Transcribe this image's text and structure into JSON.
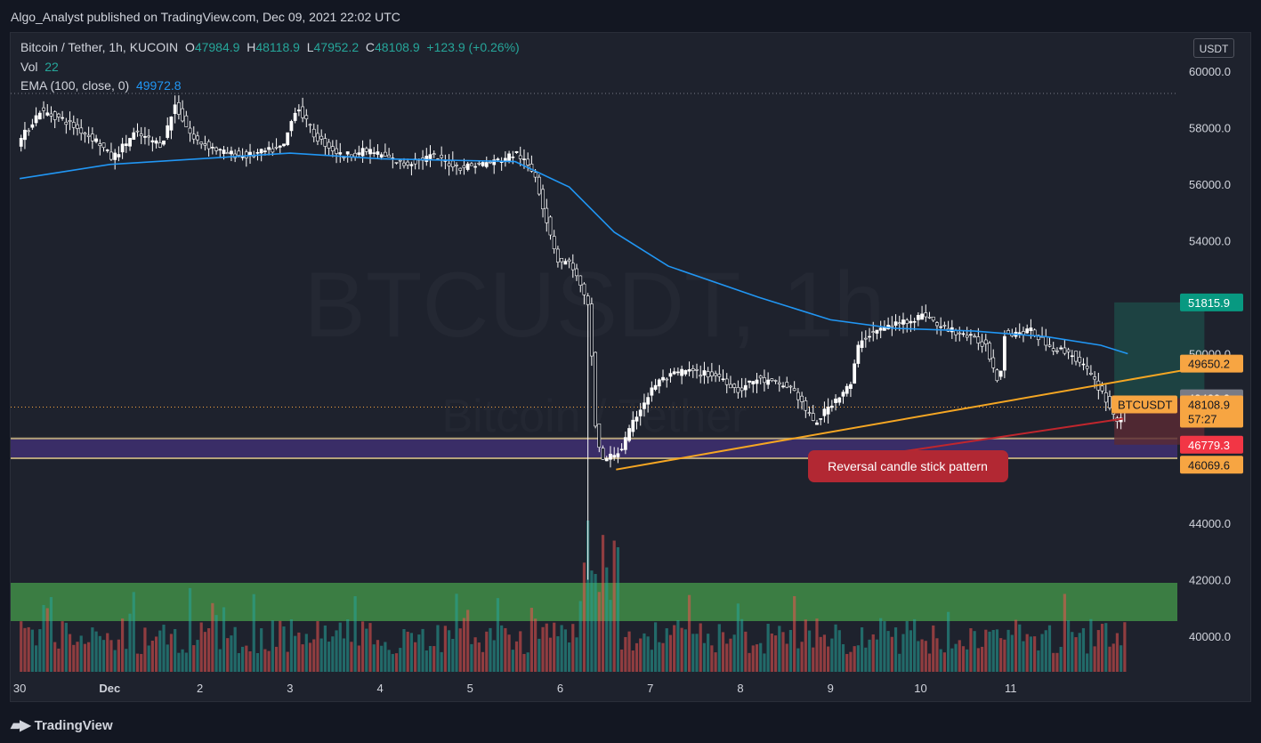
{
  "header": {
    "publisher": "Algo_Analyst published on TradingView.com, Dec 09, 2021 22:02 UTC"
  },
  "legend": {
    "symbol": "Bitcoin / Tether, 1h, KUCOIN",
    "o_label": "O",
    "o_value": "47984.9",
    "h_label": "H",
    "h_value": "48118.9",
    "l_label": "L",
    "l_value": "47952.2",
    "c_label": "C",
    "c_value": "48108.9",
    "change": "+123.9 (+0.26%)",
    "vol_label": "Vol",
    "vol_value": "22",
    "ema_label": "EMA (100, close, 0)",
    "ema_value": "49972.8"
  },
  "currency_button": "USDT",
  "watermark": {
    "main": "BTCUSDT, 1h",
    "sub": "Bitcoin / Tether"
  },
  "footer": {
    "brand": "TradingView"
  },
  "colors": {
    "background": "#1e222d",
    "up": "#ffffff",
    "down": "#ffffff",
    "ema": "#2196f3",
    "trendline": "#f5a623",
    "support_zone": "#3d2f6e",
    "volume_zone": "#4caf50",
    "vol_up": "#26a69a",
    "vol_down": "#ef5350",
    "target": "#1e4e4a",
    "stop": "#5b2a33"
  },
  "chart_data": {
    "type": "candlestick",
    "symbol": "BTCUSDT",
    "timeframe": "1h",
    "ylim": [
      38700,
      61200
    ],
    "y_ticks": [
      40000,
      42000,
      44000,
      46000,
      48000,
      50000,
      52000,
      54000,
      56000,
      58000,
      60000
    ],
    "x_range": [
      "Nov 29 12:00",
      "Dec 11 20:00"
    ],
    "x_ticks": [
      {
        "label": "30",
        "day": 1
      },
      {
        "label": "Dec",
        "day": 2
      },
      {
        "label": "2",
        "day": 3
      },
      {
        "label": "3",
        "day": 4
      },
      {
        "label": "4",
        "day": 5
      },
      {
        "label": "5",
        "day": 6
      },
      {
        "label": "6",
        "day": 7
      },
      {
        "label": "7",
        "day": 8
      },
      {
        "label": "8",
        "day": 9
      },
      {
        "label": "9",
        "day": 10
      },
      {
        "label": "10",
        "day": 11
      },
      {
        "label": "11",
        "day": 12
      }
    ],
    "price_path": [
      [
        0.0,
        57400
      ],
      [
        0.25,
        58600
      ],
      [
        0.5,
        58300
      ],
      [
        0.9,
        57500
      ],
      [
        1.05,
        56900
      ],
      [
        1.3,
        57800
      ],
      [
        1.6,
        57400
      ],
      [
        1.75,
        58800
      ],
      [
        1.95,
        57600
      ],
      [
        2.3,
        57100
      ],
      [
        2.55,
        57000
      ],
      [
        2.95,
        57300
      ],
      [
        3.1,
        58800
      ],
      [
        3.3,
        57700
      ],
      [
        3.6,
        57000
      ],
      [
        3.9,
        57200
      ],
      [
        4.3,
        56700
      ],
      [
        4.6,
        57000
      ],
      [
        4.9,
        56600
      ],
      [
        5.3,
        56800
      ],
      [
        5.55,
        57100
      ],
      [
        5.75,
        56300
      ],
      [
        5.85,
        55000
      ],
      [
        6.0,
        53300
      ],
      [
        6.15,
        53200
      ],
      [
        6.35,
        51500
      ],
      [
        6.42,
        47200
      ],
      [
        6.5,
        46200
      ],
      [
        6.7,
        46600
      ],
      [
        6.9,
        48000
      ],
      [
        7.1,
        49000
      ],
      [
        7.4,
        49400
      ],
      [
        7.8,
        49200
      ],
      [
        8.0,
        48700
      ],
      [
        8.2,
        49100
      ],
      [
        8.6,
        48800
      ],
      [
        8.85,
        47500
      ],
      [
        9.05,
        48300
      ],
      [
        9.25,
        48900
      ],
      [
        9.35,
        50500
      ],
      [
        9.6,
        50900
      ],
      [
        9.9,
        51200
      ],
      [
        10.1,
        51400
      ],
      [
        10.2,
        51000
      ],
      [
        10.5,
        50700
      ],
      [
        10.75,
        50300
      ],
      [
        10.9,
        48900
      ],
      [
        10.95,
        50700
      ],
      [
        11.25,
        50800
      ],
      [
        11.5,
        50200
      ],
      [
        11.7,
        50000
      ],
      [
        11.85,
        49500
      ],
      [
        12.05,
        48600
      ],
      [
        12.2,
        47600
      ],
      [
        12.32,
        48100
      ]
    ],
    "ema": {
      "name": "EMA (100, close, 0)",
      "last": 49972.8,
      "path": [
        [
          0.0,
          56200
        ],
        [
          1.0,
          56700
        ],
        [
          2.0,
          56900
        ],
        [
          3.0,
          57100
        ],
        [
          4.0,
          56900
        ],
        [
          5.5,
          56800
        ],
        [
          6.1,
          55900
        ],
        [
          6.6,
          54300
        ],
        [
          7.2,
          53100
        ],
        [
          8.2,
          52000
        ],
        [
          9.0,
          51200
        ],
        [
          9.7,
          50900
        ],
        [
          10.6,
          50800
        ],
        [
          11.4,
          50600
        ],
        [
          12.0,
          50300
        ],
        [
          12.3,
          50000
        ]
      ]
    },
    "volume": {
      "label": "Vol",
      "last": 22
    },
    "levels": [
      {
        "label": "51815.9",
        "price": 51815.9,
        "color": "#089981",
        "text_color": "#ffffff"
      },
      {
        "label": "49650.2",
        "price": 49650.2,
        "color": "#f7a542",
        "text_color": "#131722"
      },
      {
        "label": "48423.2",
        "price": 48423.2,
        "color": "#787b86",
        "text_color": "#ffffff"
      },
      {
        "label": "48108.9",
        "price": 48108.9,
        "color": "#f7a542",
        "text_color": "#131722"
      },
      {
        "label": "46779.3",
        "price": 46779.3,
        "color": "#f23645",
        "text_color": "#ffffff"
      },
      {
        "label": "46069.6",
        "price": 46069.6,
        "color": "#f7a542",
        "text_color": "#131722"
      }
    ],
    "countdown": "57:27",
    "symbol_tag": "BTCUSDT",
    "support_zone": [
      46300,
      47000
    ],
    "trendline": {
      "from": [
        6.62,
        45900
      ],
      "to": [
        13.25,
        49600
      ]
    },
    "position": {
      "from_day": 12.15,
      "to_day": 13.15,
      "target": 51815.9,
      "entry": 48423.2,
      "stop": 46779.3
    },
    "annotation": "Reversal candle stick pattern",
    "last_price": 48108.9
  }
}
